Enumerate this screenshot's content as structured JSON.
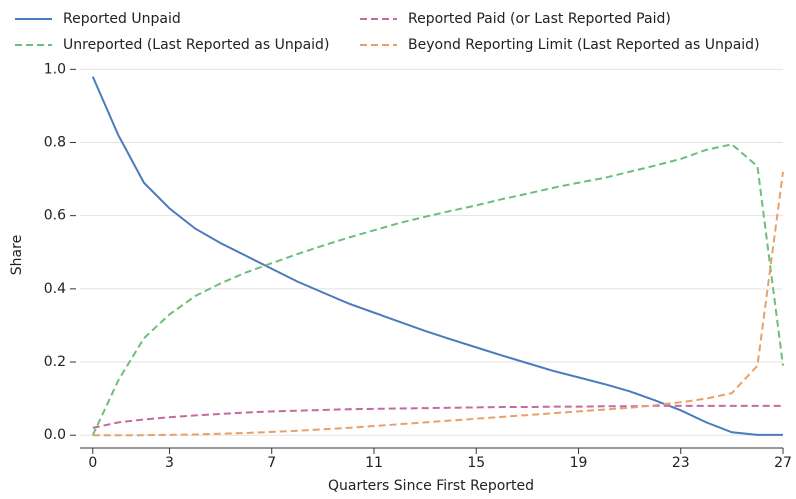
{
  "chart_data": {
    "type": "line",
    "xlabel": "Quarters Since First Reported",
    "ylabel": "Share",
    "x": [
      0,
      1,
      2,
      3,
      4,
      5,
      6,
      7,
      8,
      9,
      10,
      11,
      12,
      13,
      14,
      15,
      16,
      17,
      18,
      19,
      20,
      21,
      22,
      23,
      24,
      25,
      26,
      27
    ],
    "series": [
      {
        "name": "Reported Unpaid",
        "color": "#4a7bbf",
        "linestyle": "solid",
        "values": [
          0.98,
          0.82,
          0.69,
          0.62,
          0.565,
          0.525,
          0.49,
          0.455,
          0.42,
          0.39,
          0.36,
          0.335,
          0.31,
          0.285,
          0.262,
          0.24,
          0.218,
          0.197,
          0.176,
          0.158,
          0.14,
          0.12,
          0.095,
          0.068,
          0.035,
          0.008,
          0.001,
          0.001
        ]
      },
      {
        "name": "Reported Paid (or Last Reported Paid)",
        "color": "#c46a9e",
        "linestyle": "dashed",
        "values": [
          0.02,
          0.035,
          0.043,
          0.049,
          0.054,
          0.058,
          0.062,
          0.065,
          0.067,
          0.069,
          0.071,
          0.072,
          0.073,
          0.074,
          0.075,
          0.076,
          0.077,
          0.077,
          0.078,
          0.078,
          0.079,
          0.079,
          0.08,
          0.08,
          0.08,
          0.08,
          0.08,
          0.08
        ]
      },
      {
        "name": "Unreported (Last Reported as Unpaid)",
        "color": "#6cbf7a",
        "linestyle": "dashed",
        "values": [
          0.0,
          0.15,
          0.265,
          0.33,
          0.38,
          0.415,
          0.445,
          0.47,
          0.495,
          0.518,
          0.54,
          0.56,
          0.58,
          0.597,
          0.613,
          0.628,
          0.645,
          0.66,
          0.676,
          0.69,
          0.703,
          0.72,
          0.737,
          0.755,
          0.78,
          0.795,
          0.735,
          0.19
        ]
      },
      {
        "name": "Beyond Reporting Limit (Last Reported as Unpaid)",
        "color": "#e8a06b",
        "linestyle": "dashed",
        "values": [
          0,
          0,
          0,
          0.001,
          0.002,
          0.004,
          0.006,
          0.009,
          0.012,
          0.016,
          0.02,
          0.025,
          0.03,
          0.035,
          0.04,
          0.045,
          0.05,
          0.055,
          0.06,
          0.065,
          0.07,
          0.075,
          0.082,
          0.09,
          0.1,
          0.115,
          0.19,
          0.72
        ]
      }
    ],
    "xlim": [
      -0.5,
      27
    ],
    "ylim": [
      -0.035,
      1.02
    ],
    "xticks": [
      0,
      3,
      7,
      11,
      15,
      19,
      23,
      27
    ],
    "yticks": [
      {
        "value": 0,
        "label": "0.0"
      },
      0.2,
      0.4,
      0.6,
      0.8,
      {
        "value": 1,
        "label": "1.0"
      }
    ],
    "grid": true
  }
}
